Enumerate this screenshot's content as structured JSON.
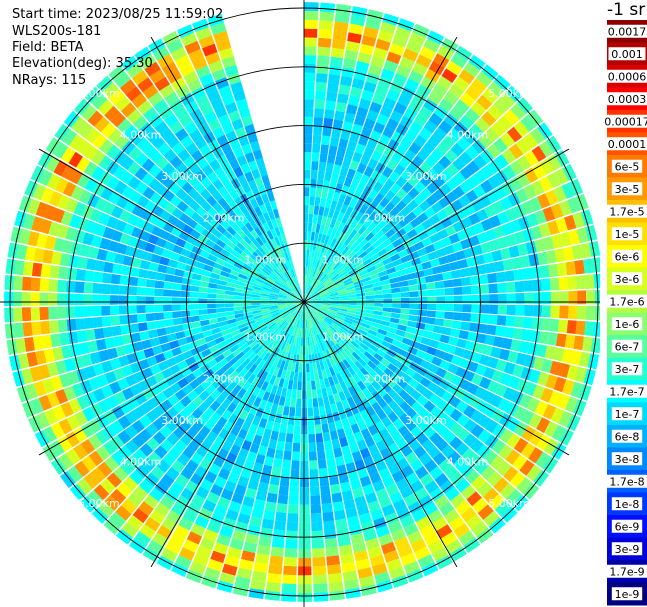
{
  "header": {
    "start_time": "Start time: 2023/08/25 11:59:02",
    "instrument": "WLS200s-181",
    "field": "Field: BETA",
    "elevation": "Elevation(deg): 35.30",
    "nrays": "NRays: 115"
  },
  "colorbar": {
    "unit_label": "-1 sr",
    "tick_labels": [
      "0.0017",
      "0.001",
      "0.0006",
      "0.0003",
      "0.00017",
      "0.0001",
      "6e-5",
      "3e-5",
      "1.7e-5",
      "1e-5",
      "6e-6",
      "3e-6",
      "1.7e-6",
      "1e-6",
      "6e-7",
      "3e-7",
      "1.7e-7",
      "1e-7",
      "6e-8",
      "3e-8",
      "1.7e-8",
      "1e-8",
      "6e-9",
      "3e-9",
      "1.7e-9",
      "1e-9"
    ],
    "colors": [
      "#8c0000",
      "#b30000",
      "#d90000",
      "#ff0000",
      "#ff3300",
      "#ff5500",
      "#ff7a00",
      "#ff9a00",
      "#ffc000",
      "#ffe000",
      "#ffff00",
      "#d8ff1e",
      "#b4ff46",
      "#8cff6e",
      "#5aff9c",
      "#28ffd0",
      "#00ffff",
      "#00d9ff",
      "#00b0ff",
      "#0088ff",
      "#0060ff",
      "#0038ff",
      "#0010ff",
      "#0000d8",
      "#0000a8",
      "#000080"
    ]
  },
  "chart_data": {
    "type": "heatmap",
    "projection": "polar-ppi",
    "field": "BETA",
    "units": "-1 sr",
    "elevation_deg": 35.3,
    "n_rays": 115,
    "missing_sector_deg": [
      345,
      360
    ],
    "range_rings_km": [
      1.0,
      2.0,
      3.0,
      4.0,
      5.0
    ],
    "ring_labels": [
      "1.00km",
      "2.00km",
      "3.00km",
      "4.00km",
      "5.00km"
    ],
    "max_range_km": 5.1,
    "spoke_angles_deg": [
      0,
      30,
      60,
      90,
      120,
      150,
      180,
      210,
      240,
      270,
      300,
      330
    ],
    "radial_profile": [
      {
        "range_km": 0.0,
        "color_level": 15
      },
      {
        "range_km": 1.0,
        "color_level": 16
      },
      {
        "range_km": 2.0,
        "color_level": 17
      },
      {
        "range_km": 3.0,
        "color_level": 17
      },
      {
        "range_km": 4.0,
        "color_level": 16
      },
      {
        "range_km": 4.6,
        "color_level": 9
      },
      {
        "range_km": 5.0,
        "color_level": 15
      }
    ]
  }
}
